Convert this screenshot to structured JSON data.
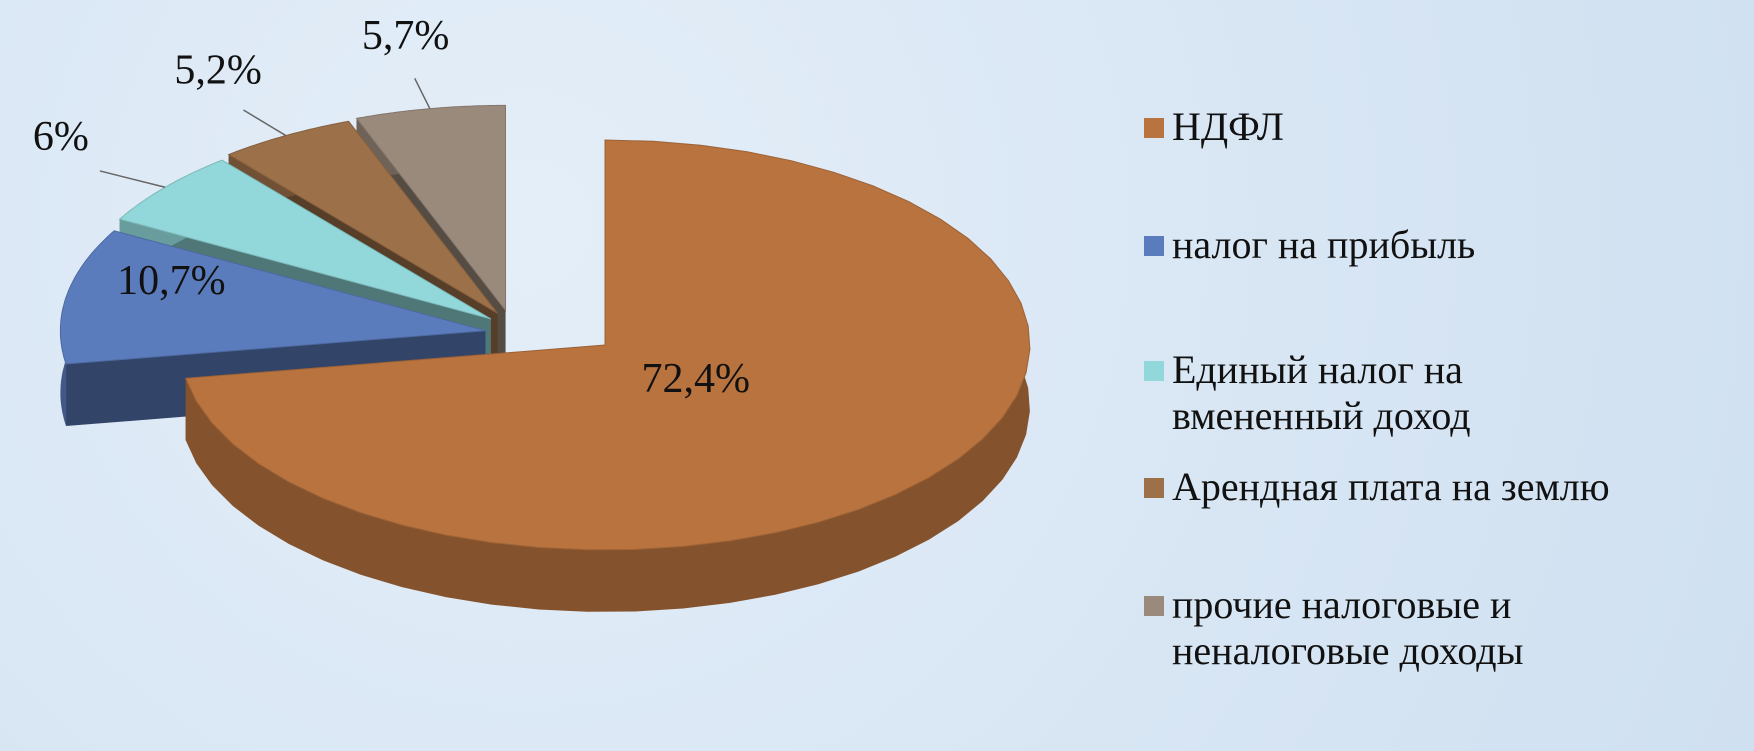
{
  "chart_data": {
    "type": "pie",
    "categories": [
      "НДФЛ",
      "налог на прибыль",
      "Единый налог на вмененный доход",
      "Арендная плата на землю",
      "прочие налоговые и неналоговые доходы"
    ],
    "values": [
      72.4,
      10.7,
      6,
      5.2,
      5.7
    ],
    "value_labels": [
      "72,4%",
      "10,7%",
      "6%",
      "5,2%",
      "5,7%"
    ],
    "colors": [
      "#b8733f",
      "#5b7cbc",
      "#92d8da",
      "#9c7049",
      "#9a8a7c"
    ],
    "legend": "right"
  }
}
